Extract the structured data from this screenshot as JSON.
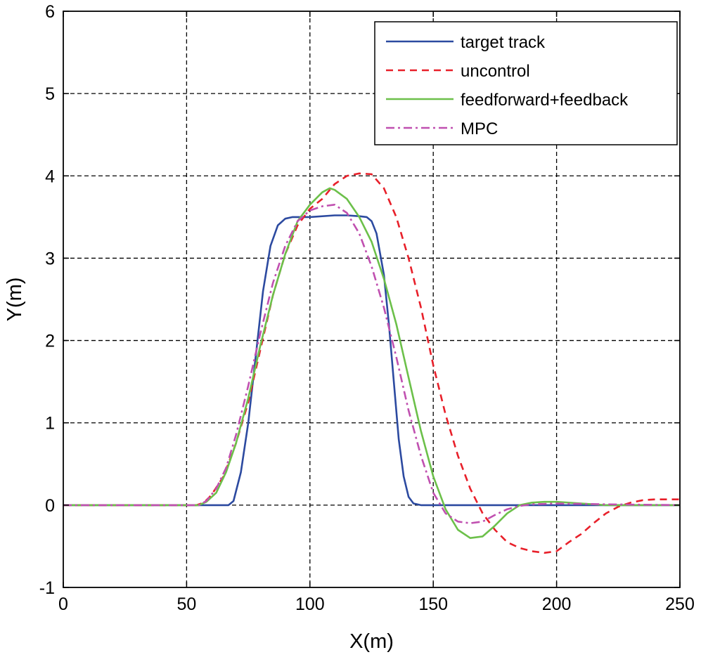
{
  "chart_data": {
    "type": "line",
    "title": "",
    "xlabel": "X(m)",
    "ylabel": "Y(m)",
    "xlim": [
      0,
      250
    ],
    "ylim": [
      -1,
      6
    ],
    "xticks": [
      0,
      50,
      100,
      150,
      200,
      250
    ],
    "yticks": [
      -1,
      0,
      1,
      2,
      3,
      4,
      5,
      6
    ],
    "xtick_labels": [
      "0",
      "50",
      "100",
      "150",
      "200",
      "250"
    ],
    "ytick_labels": [
      "-1",
      "0",
      "1",
      "2",
      "3",
      "4",
      "5",
      "6"
    ],
    "grid": true,
    "legend_position": "top-right",
    "series": [
      {
        "name": "target track",
        "color": "#2c4aa0",
        "style": "solid",
        "points": [
          [
            0,
            0
          ],
          [
            67,
            0
          ],
          [
            69,
            0.05
          ],
          [
            72,
            0.4
          ],
          [
            75,
            1.0
          ],
          [
            78,
            1.8
          ],
          [
            81,
            2.6
          ],
          [
            84,
            3.15
          ],
          [
            87,
            3.4
          ],
          [
            90,
            3.48
          ],
          [
            93,
            3.5
          ],
          [
            100,
            3.5
          ],
          [
            110,
            3.52
          ],
          [
            115,
            3.52
          ],
          [
            120,
            3.51
          ],
          [
            123,
            3.5
          ],
          [
            125,
            3.45
          ],
          [
            127,
            3.3
          ],
          [
            130,
            2.8
          ],
          [
            132,
            2.2
          ],
          [
            134,
            1.5
          ],
          [
            136,
            0.8
          ],
          [
            138,
            0.35
          ],
          [
            140,
            0.1
          ],
          [
            142,
            0.02
          ],
          [
            145,
            0
          ],
          [
            250,
            0
          ]
        ]
      },
      {
        "name": "uncontrol",
        "color": "#e8202a",
        "style": "dashed",
        "points": [
          [
            0,
            0
          ],
          [
            54,
            0
          ],
          [
            57,
            0.03
          ],
          [
            60,
            0.12
          ],
          [
            65,
            0.35
          ],
          [
            70,
            0.75
          ],
          [
            75,
            1.25
          ],
          [
            80,
            1.9
          ],
          [
            85,
            2.55
          ],
          [
            90,
            3.05
          ],
          [
            95,
            3.4
          ],
          [
            100,
            3.6
          ],
          [
            105,
            3.72
          ],
          [
            110,
            3.9
          ],
          [
            115,
            4.0
          ],
          [
            120,
            4.03
          ],
          [
            125,
            4.02
          ],
          [
            130,
            3.85
          ],
          [
            135,
            3.5
          ],
          [
            140,
            3.0
          ],
          [
            145,
            2.4
          ],
          [
            150,
            1.7
          ],
          [
            155,
            1.1
          ],
          [
            160,
            0.6
          ],
          [
            165,
            0.2
          ],
          [
            170,
            -0.1
          ],
          [
            175,
            -0.3
          ],
          [
            180,
            -0.45
          ],
          [
            185,
            -0.52
          ],
          [
            190,
            -0.56
          ],
          [
            195,
            -0.58
          ],
          [
            200,
            -0.56
          ],
          [
            205,
            -0.45
          ],
          [
            210,
            -0.35
          ],
          [
            215,
            -0.22
          ],
          [
            220,
            -0.1
          ],
          [
            225,
            -0.02
          ],
          [
            230,
            0.03
          ],
          [
            235,
            0.06
          ],
          [
            240,
            0.07
          ],
          [
            245,
            0.07
          ],
          [
            250,
            0.07
          ]
        ]
      },
      {
        "name": "feedforward+feedback",
        "color": "#6cc04a",
        "style": "solid",
        "points": [
          [
            0,
            0
          ],
          [
            55,
            0
          ],
          [
            58,
            0.04
          ],
          [
            62,
            0.15
          ],
          [
            66,
            0.4
          ],
          [
            70,
            0.75
          ],
          [
            75,
            1.3
          ],
          [
            80,
            1.95
          ],
          [
            85,
            2.55
          ],
          [
            90,
            3.05
          ],
          [
            95,
            3.45
          ],
          [
            100,
            3.65
          ],
          [
            105,
            3.8
          ],
          [
            108,
            3.85
          ],
          [
            110,
            3.83
          ],
          [
            115,
            3.72
          ],
          [
            120,
            3.5
          ],
          [
            125,
            3.2
          ],
          [
            130,
            2.75
          ],
          [
            135,
            2.2
          ],
          [
            140,
            1.55
          ],
          [
            145,
            0.9
          ],
          [
            150,
            0.35
          ],
          [
            155,
            -0.05
          ],
          [
            160,
            -0.3
          ],
          [
            165,
            -0.4
          ],
          [
            170,
            -0.38
          ],
          [
            175,
            -0.25
          ],
          [
            180,
            -0.1
          ],
          [
            185,
            0
          ],
          [
            190,
            0.03
          ],
          [
            195,
            0.04
          ],
          [
            200,
            0.04
          ],
          [
            210,
            0.02
          ],
          [
            220,
            0
          ],
          [
            250,
            0
          ]
        ]
      },
      {
        "name": "MPC",
        "color": "#c050b0",
        "style": "dashdot",
        "points": [
          [
            0,
            0
          ],
          [
            55,
            0
          ],
          [
            58,
            0.05
          ],
          [
            62,
            0.2
          ],
          [
            66,
            0.45
          ],
          [
            70,
            0.85
          ],
          [
            75,
            1.45
          ],
          [
            80,
            2.1
          ],
          [
            85,
            2.7
          ],
          [
            90,
            3.15
          ],
          [
            95,
            3.45
          ],
          [
            100,
            3.58
          ],
          [
            105,
            3.63
          ],
          [
            110,
            3.65
          ],
          [
            115,
            3.55
          ],
          [
            120,
            3.3
          ],
          [
            125,
            2.9
          ],
          [
            130,
            2.4
          ],
          [
            135,
            1.8
          ],
          [
            140,
            1.15
          ],
          [
            145,
            0.6
          ],
          [
            150,
            0.15
          ],
          [
            155,
            -0.1
          ],
          [
            160,
            -0.2
          ],
          [
            165,
            -0.22
          ],
          [
            170,
            -0.2
          ],
          [
            175,
            -0.12
          ],
          [
            180,
            -0.05
          ],
          [
            185,
            -0.01
          ],
          [
            190,
            0.01
          ],
          [
            200,
            0.02
          ],
          [
            220,
            0.01
          ],
          [
            250,
            0
          ]
        ]
      }
    ]
  }
}
